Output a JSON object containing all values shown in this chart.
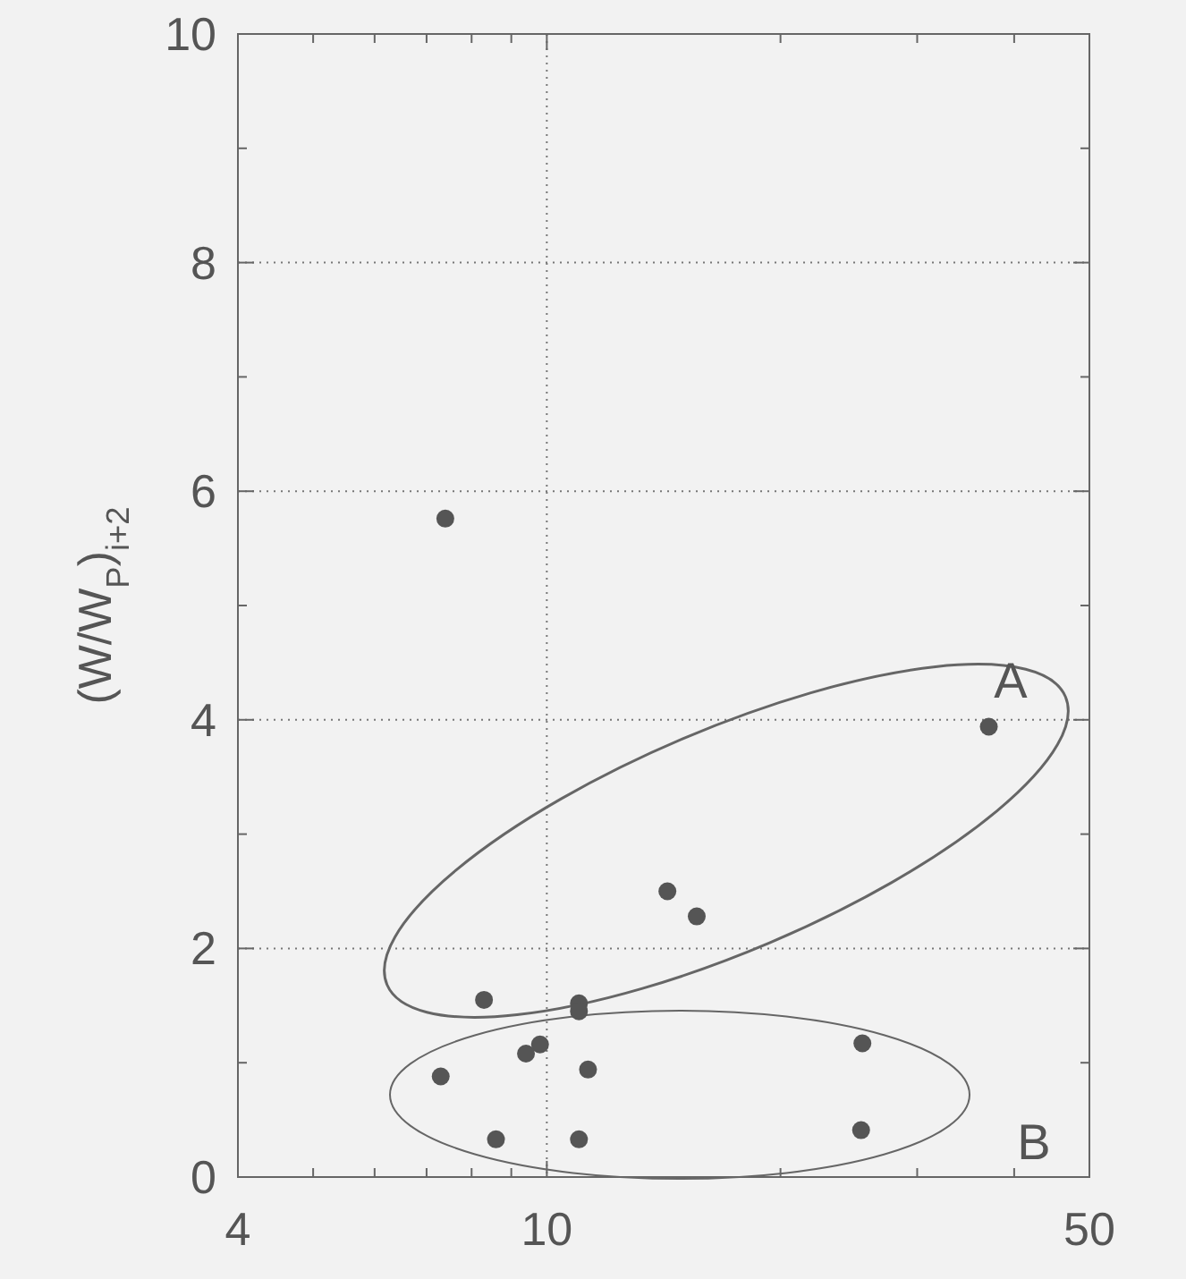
{
  "chart_data": {
    "type": "scatter",
    "ylabel": "(W/W$_{P}$)$_{i+2}$",
    "log": "x",
    "xlim": [
      4,
      50
    ],
    "ylim": [
      0,
      10
    ],
    "xticks": [
      4,
      {
        "value": 5,
        "label": null
      },
      {
        "value": 6,
        "label": null
      },
      {
        "value": 7,
        "label": null
      },
      {
        "value": 8,
        "label": null
      },
      {
        "value": 9,
        "label": null
      },
      10,
      {
        "value": 20,
        "label": null
      },
      {
        "value": 30,
        "label": null
      },
      {
        "value": 40,
        "label": null
      },
      50
    ],
    "yticks": [
      0,
      {
        "value": 1,
        "label": null
      },
      2,
      {
        "value": 3,
        "label": null
      },
      4,
      {
        "value": 5,
        "label": null
      },
      6,
      {
        "value": 7,
        "label": null
      },
      8,
      {
        "value": 9,
        "label": null
      },
      10
    ],
    "grid": true,
    "marker": "circle",
    "annotations": [
      "A",
      "B"
    ],
    "series": [
      {
        "color": "#555555",
        "x": [
          7.4,
          37.1,
          14.3,
          15.6,
          8.3,
          11.0,
          11.0,
          9.8,
          9.4,
          11.3,
          7.3,
          25.5,
          8.6,
          11.0,
          25.4
        ],
        "values": [
          5.76,
          3.94,
          2.5,
          2.28,
          1.55,
          1.52,
          1.45,
          1.16,
          1.08,
          0.94,
          0.88,
          1.17,
          0.33,
          0.33,
          0.41
        ]
      }
    ]
  }
}
